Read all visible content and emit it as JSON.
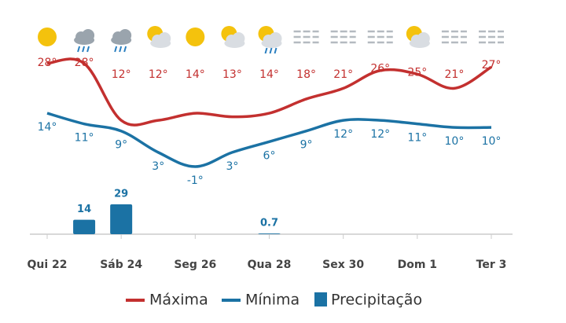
{
  "chart_data": {
    "type": "line",
    "categories": [
      "Qui 22",
      null,
      "Sáb 24",
      null,
      "Seg 26",
      null,
      "Qua 28",
      null,
      "Sex 30",
      null,
      "Dom 1",
      null,
      "Ter 3"
    ],
    "ylim": [
      -20,
      35
    ],
    "y2lim": [
      0,
      190
    ],
    "series": [
      {
        "name": "Máxima",
        "color": "#c3302f",
        "values": [
          28,
          28,
          12,
          12,
          14,
          13,
          14,
          18,
          21,
          26,
          25,
          21,
          27
        ],
        "value_labels": [
          "28°",
          "28°",
          "12°",
          "12°",
          "14°",
          "13°",
          "14°",
          "18°",
          "21°",
          "26°",
          "25°",
          "21°",
          "27°"
        ]
      },
      {
        "name": "Mínima",
        "color": "#1b72a4",
        "values": [
          14,
          11,
          9,
          3,
          -1,
          3,
          6,
          9,
          12,
          12,
          11,
          10,
          10
        ],
        "value_labels": [
          "14°",
          "11°",
          "9°",
          "3°",
          "-1°",
          "3°",
          "6°",
          "9°",
          "12°",
          "12°",
          "11°",
          "10°",
          "10°"
        ]
      },
      {
        "name": "Precipitação",
        "type": "bar",
        "axis": "y2",
        "color": "#1b72a4",
        "values": [
          null,
          14,
          29,
          null,
          null,
          null,
          0.7,
          null,
          null,
          null,
          null,
          null,
          null
        ]
      }
    ]
  }
}
